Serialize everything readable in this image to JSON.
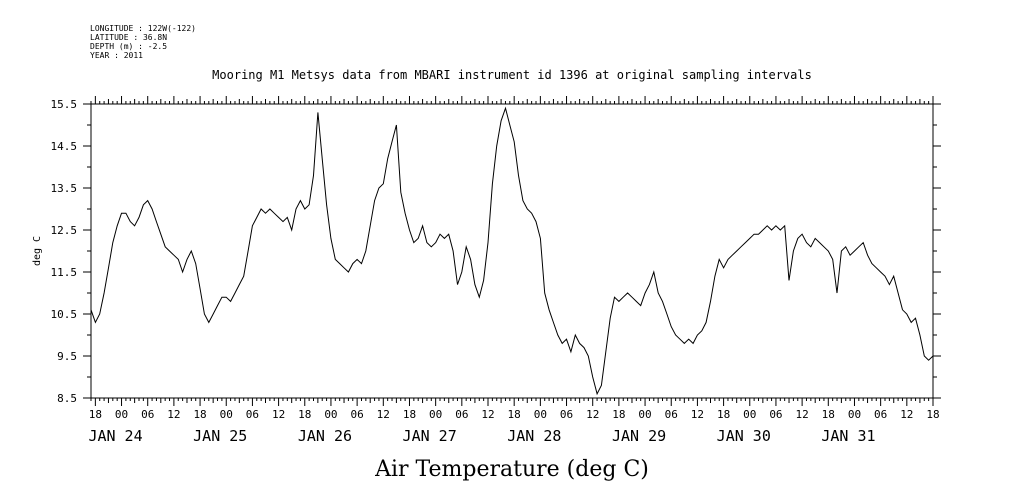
{
  "header": {
    "lines": [
      "LONGITUDE : 122W(-122)",
      "LATITUDE : 36.8N",
      "DEPTH (m) : -2.5",
      "YEAR : 2011"
    ],
    "title": "Mooring M1 Metsys data from MBARI instrument id 1396 at original sampling intervals"
  },
  "chart_data": {
    "type": "line",
    "title": "Mooring M1 Metsys data from MBARI instrument id 1396 at original sampling intervals",
    "xlabel": "Air Temperature (deg C)",
    "ylabel": "deg C",
    "ylim": [
      8.5,
      15.5
    ],
    "yticks": [
      "8.5",
      "9.5",
      "10.5",
      "11.5",
      "12.5",
      "13.5",
      "14.5",
      "15.5"
    ],
    "xlim": [
      "2011-01-23T17:00",
      "2011-01-31T18:00"
    ],
    "hour_ticks": [
      "18",
      "00",
      "06",
      "12",
      "18",
      "00",
      "06",
      "12",
      "18",
      "00",
      "06",
      "12",
      "18",
      "00",
      "06",
      "12",
      "18",
      "00",
      "06",
      "12",
      "18",
      "00",
      "06",
      "12",
      "18",
      "00",
      "06",
      "12",
      "18",
      "00",
      "06",
      "12",
      "18"
    ],
    "day_labels": [
      {
        "label": "JAN 24",
        "at": "2011-01-24T00:00"
      },
      {
        "label": "JAN 25",
        "at": "2011-01-25T00:00"
      },
      {
        "label": "JAN 26",
        "at": "2011-01-26T00:00"
      },
      {
        "label": "JAN 27",
        "at": "2011-01-27T00:00"
      },
      {
        "label": "JAN 28",
        "at": "2011-01-28T00:00"
      },
      {
        "label": "JAN 29",
        "at": "2011-01-29T00:00"
      },
      {
        "label": "JAN 30",
        "at": "2011-01-30T00:00"
      },
      {
        "label": "JAN 31",
        "at": "2011-01-31T00:00"
      }
    ],
    "grid": false,
    "series": [
      {
        "color": "#000000",
        "points": [
          [
            "2011-01-23T17:00",
            10.6
          ],
          [
            "2011-01-23T18:00",
            10.3
          ],
          [
            "2011-01-23T19:00",
            10.5
          ],
          [
            "2011-01-23T20:00",
            11.0
          ],
          [
            "2011-01-23T21:00",
            11.6
          ],
          [
            "2011-01-23T22:00",
            12.2
          ],
          [
            "2011-01-23T23:00",
            12.6
          ],
          [
            "2011-01-24T00:00",
            12.9
          ],
          [
            "2011-01-24T01:00",
            12.9
          ],
          [
            "2011-01-24T02:00",
            12.7
          ],
          [
            "2011-01-24T03:00",
            12.6
          ],
          [
            "2011-01-24T04:00",
            12.8
          ],
          [
            "2011-01-24T05:00",
            13.1
          ],
          [
            "2011-01-24T06:00",
            13.2
          ],
          [
            "2011-01-24T07:00",
            13.0
          ],
          [
            "2011-01-24T08:00",
            12.7
          ],
          [
            "2011-01-24T09:00",
            12.4
          ],
          [
            "2011-01-24T10:00",
            12.1
          ],
          [
            "2011-01-24T11:00",
            12.0
          ],
          [
            "2011-01-24T12:00",
            11.9
          ],
          [
            "2011-01-24T13:00",
            11.8
          ],
          [
            "2011-01-24T14:00",
            11.5
          ],
          [
            "2011-01-24T15:00",
            11.8
          ],
          [
            "2011-01-24T16:00",
            12.0
          ],
          [
            "2011-01-24T17:00",
            11.7
          ],
          [
            "2011-01-24T18:00",
            11.1
          ],
          [
            "2011-01-24T19:00",
            10.5
          ],
          [
            "2011-01-24T20:00",
            10.3
          ],
          [
            "2011-01-24T21:00",
            10.5
          ],
          [
            "2011-01-24T22:00",
            10.7
          ],
          [
            "2011-01-24T23:00",
            10.9
          ],
          [
            "2011-01-25T00:00",
            10.9
          ],
          [
            "2011-01-25T01:00",
            10.8
          ],
          [
            "2011-01-25T02:00",
            11.0
          ],
          [
            "2011-01-25T03:00",
            11.2
          ],
          [
            "2011-01-25T04:00",
            11.4
          ],
          [
            "2011-01-25T05:00",
            12.0
          ],
          [
            "2011-01-25T06:00",
            12.6
          ],
          [
            "2011-01-25T07:00",
            12.8
          ],
          [
            "2011-01-25T08:00",
            13.0
          ],
          [
            "2011-01-25T09:00",
            12.9
          ],
          [
            "2011-01-25T10:00",
            13.0
          ],
          [
            "2011-01-25T11:00",
            12.9
          ],
          [
            "2011-01-25T12:00",
            12.8
          ],
          [
            "2011-01-25T13:00",
            12.7
          ],
          [
            "2011-01-25T14:00",
            12.8
          ],
          [
            "2011-01-25T15:00",
            12.5
          ],
          [
            "2011-01-25T16:00",
            13.0
          ],
          [
            "2011-01-25T17:00",
            13.2
          ],
          [
            "2011-01-25T18:00",
            13.0
          ],
          [
            "2011-01-25T19:00",
            13.1
          ],
          [
            "2011-01-25T20:00",
            13.8
          ],
          [
            "2011-01-25T21:00",
            15.3
          ],
          [
            "2011-01-25T22:00",
            14.2
          ],
          [
            "2011-01-25T23:00",
            13.1
          ],
          [
            "2011-01-26T00:00",
            12.3
          ],
          [
            "2011-01-26T01:00",
            11.8
          ],
          [
            "2011-01-26T02:00",
            11.7
          ],
          [
            "2011-01-26T03:00",
            11.6
          ],
          [
            "2011-01-26T04:00",
            11.5
          ],
          [
            "2011-01-26T05:00",
            11.7
          ],
          [
            "2011-01-26T06:00",
            11.8
          ],
          [
            "2011-01-26T07:00",
            11.7
          ],
          [
            "2011-01-26T08:00",
            12.0
          ],
          [
            "2011-01-26T09:00",
            12.6
          ],
          [
            "2011-01-26T10:00",
            13.2
          ],
          [
            "2011-01-26T11:00",
            13.5
          ],
          [
            "2011-01-26T12:00",
            13.6
          ],
          [
            "2011-01-26T13:00",
            14.2
          ],
          [
            "2011-01-26T14:00",
            14.6
          ],
          [
            "2011-01-26T15:00",
            15.0
          ],
          [
            "2011-01-26T16:00",
            13.4
          ],
          [
            "2011-01-26T17:00",
            12.9
          ],
          [
            "2011-01-26T18:00",
            12.5
          ],
          [
            "2011-01-26T19:00",
            12.2
          ],
          [
            "2011-01-26T20:00",
            12.3
          ],
          [
            "2011-01-26T21:00",
            12.6
          ],
          [
            "2011-01-26T22:00",
            12.2
          ],
          [
            "2011-01-26T23:00",
            12.1
          ],
          [
            "2011-01-27T00:00",
            12.2
          ],
          [
            "2011-01-27T01:00",
            12.4
          ],
          [
            "2011-01-27T02:00",
            12.3
          ],
          [
            "2011-01-27T03:00",
            12.4
          ],
          [
            "2011-01-27T04:00",
            12.0
          ],
          [
            "2011-01-27T05:00",
            11.2
          ],
          [
            "2011-01-27T06:00",
            11.5
          ],
          [
            "2011-01-27T07:00",
            12.1
          ],
          [
            "2011-01-27T08:00",
            11.8
          ],
          [
            "2011-01-27T09:00",
            11.2
          ],
          [
            "2011-01-27T10:00",
            10.9
          ],
          [
            "2011-01-27T11:00",
            11.3
          ],
          [
            "2011-01-27T12:00",
            12.2
          ],
          [
            "2011-01-27T13:00",
            13.6
          ],
          [
            "2011-01-27T14:00",
            14.5
          ],
          [
            "2011-01-27T15:00",
            15.1
          ],
          [
            "2011-01-27T16:00",
            15.4
          ],
          [
            "2011-01-27T17:00",
            15.0
          ],
          [
            "2011-01-27T18:00",
            14.6
          ],
          [
            "2011-01-27T19:00",
            13.8
          ],
          [
            "2011-01-27T20:00",
            13.2
          ],
          [
            "2011-01-27T21:00",
            13.0
          ],
          [
            "2011-01-27T22:00",
            12.9
          ],
          [
            "2011-01-27T23:00",
            12.7
          ],
          [
            "2011-01-28T00:00",
            12.3
          ],
          [
            "2011-01-28T01:00",
            11.0
          ],
          [
            "2011-01-28T02:00",
            10.6
          ],
          [
            "2011-01-28T03:00",
            10.3
          ],
          [
            "2011-01-28T04:00",
            10.0
          ],
          [
            "2011-01-28T05:00",
            9.8
          ],
          [
            "2011-01-28T06:00",
            9.9
          ],
          [
            "2011-01-28T07:00",
            9.6
          ],
          [
            "2011-01-28T08:00",
            10.0
          ],
          [
            "2011-01-28T09:00",
            9.8
          ],
          [
            "2011-01-28T10:00",
            9.7
          ],
          [
            "2011-01-28T11:00",
            9.5
          ],
          [
            "2011-01-28T12:00",
            9.0
          ],
          [
            "2011-01-28T13:00",
            8.6
          ],
          [
            "2011-01-28T14:00",
            8.8
          ],
          [
            "2011-01-28T15:00",
            9.6
          ],
          [
            "2011-01-28T16:00",
            10.4
          ],
          [
            "2011-01-28T17:00",
            10.9
          ],
          [
            "2011-01-28T18:00",
            10.8
          ],
          [
            "2011-01-28T19:00",
            10.9
          ],
          [
            "2011-01-28T20:00",
            11.0
          ],
          [
            "2011-01-28T21:00",
            10.9
          ],
          [
            "2011-01-28T22:00",
            10.8
          ],
          [
            "2011-01-28T23:00",
            10.7
          ],
          [
            "2011-01-29T00:00",
            11.0
          ],
          [
            "2011-01-29T01:00",
            11.2
          ],
          [
            "2011-01-29T02:00",
            11.5
          ],
          [
            "2011-01-29T03:00",
            11.0
          ],
          [
            "2011-01-29T04:00",
            10.8
          ],
          [
            "2011-01-29T05:00",
            10.5
          ],
          [
            "2011-01-29T06:00",
            10.2
          ],
          [
            "2011-01-29T07:00",
            10.0
          ],
          [
            "2011-01-29T08:00",
            9.9
          ],
          [
            "2011-01-29T09:00",
            9.8
          ],
          [
            "2011-01-29T10:00",
            9.9
          ],
          [
            "2011-01-29T11:00",
            9.8
          ],
          [
            "2011-01-29T12:00",
            10.0
          ],
          [
            "2011-01-29T13:00",
            10.1
          ],
          [
            "2011-01-29T14:00",
            10.3
          ],
          [
            "2011-01-29T15:00",
            10.8
          ],
          [
            "2011-01-29T16:00",
            11.4
          ],
          [
            "2011-01-29T17:00",
            11.8
          ],
          [
            "2011-01-29T18:00",
            11.6
          ],
          [
            "2011-01-29T19:00",
            11.8
          ],
          [
            "2011-01-29T20:00",
            11.9
          ],
          [
            "2011-01-29T21:00",
            12.0
          ],
          [
            "2011-01-29T22:00",
            12.1
          ],
          [
            "2011-01-29T23:00",
            12.2
          ],
          [
            "2011-01-30T00:00",
            12.3
          ],
          [
            "2011-01-30T01:00",
            12.4
          ],
          [
            "2011-01-30T02:00",
            12.4
          ],
          [
            "2011-01-30T03:00",
            12.5
          ],
          [
            "2011-01-30T04:00",
            12.6
          ],
          [
            "2011-01-30T05:00",
            12.5
          ],
          [
            "2011-01-30T06:00",
            12.6
          ],
          [
            "2011-01-30T07:00",
            12.5
          ],
          [
            "2011-01-30T08:00",
            12.6
          ],
          [
            "2011-01-30T09:00",
            11.3
          ],
          [
            "2011-01-30T10:00",
            12.0
          ],
          [
            "2011-01-30T11:00",
            12.3
          ],
          [
            "2011-01-30T12:00",
            12.4
          ],
          [
            "2011-01-30T13:00",
            12.2
          ],
          [
            "2011-01-30T14:00",
            12.1
          ],
          [
            "2011-01-30T15:00",
            12.3
          ],
          [
            "2011-01-30T16:00",
            12.2
          ],
          [
            "2011-01-30T17:00",
            12.1
          ],
          [
            "2011-01-30T18:00",
            12.0
          ],
          [
            "2011-01-30T19:00",
            11.8
          ],
          [
            "2011-01-30T20:00",
            11.0
          ],
          [
            "2011-01-30T21:00",
            12.0
          ],
          [
            "2011-01-30T22:00",
            12.1
          ],
          [
            "2011-01-30T23:00",
            11.9
          ],
          [
            "2011-01-31T00:00",
            12.0
          ],
          [
            "2011-01-31T01:00",
            12.1
          ],
          [
            "2011-01-31T02:00",
            12.2
          ],
          [
            "2011-01-31T03:00",
            11.9
          ],
          [
            "2011-01-31T04:00",
            11.7
          ],
          [
            "2011-01-31T05:00",
            11.6
          ],
          [
            "2011-01-31T06:00",
            11.5
          ],
          [
            "2011-01-31T07:00",
            11.4
          ],
          [
            "2011-01-31T08:00",
            11.2
          ],
          [
            "2011-01-31T09:00",
            11.4
          ],
          [
            "2011-01-31T10:00",
            11.0
          ],
          [
            "2011-01-31T11:00",
            10.6
          ],
          [
            "2011-01-31T12:00",
            10.5
          ],
          [
            "2011-01-31T13:00",
            10.3
          ],
          [
            "2011-01-31T14:00",
            10.4
          ],
          [
            "2011-01-31T15:00",
            10.0
          ],
          [
            "2011-01-31T16:00",
            9.5
          ],
          [
            "2011-01-31T17:00",
            9.4
          ],
          [
            "2011-01-31T18:00",
            9.5
          ]
        ]
      }
    ]
  }
}
